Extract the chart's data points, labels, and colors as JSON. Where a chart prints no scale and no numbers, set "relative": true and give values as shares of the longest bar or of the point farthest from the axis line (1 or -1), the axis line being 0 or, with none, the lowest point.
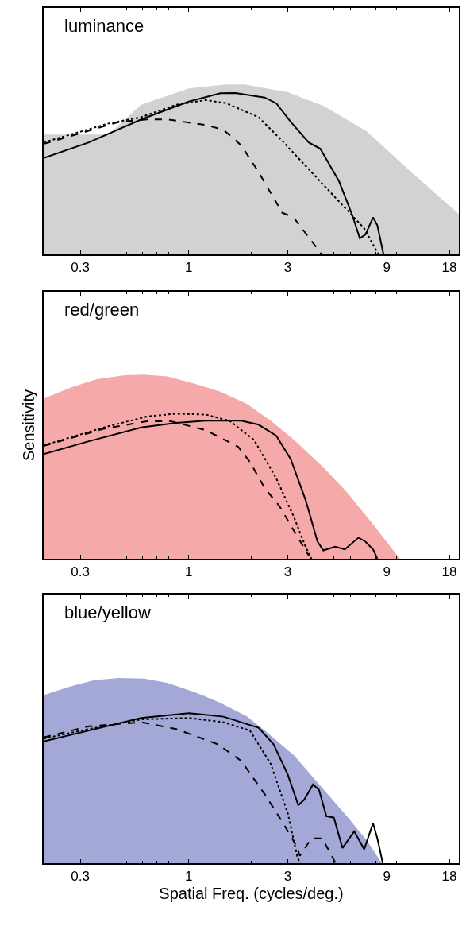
{
  "chart_data": [
    {
      "type": "line",
      "title": "luminance",
      "relative": true,
      "log": "x",
      "xlim": [
        0.2,
        20
      ],
      "xticks": [
        0.3,
        1,
        3,
        9,
        18
      ],
      "tick_labels": "x",
      "series": [
        {
          "type": "area",
          "color": "#d1d2d4",
          "x": [
            0.2,
            0.41,
            0.59,
            1,
            1.5,
            1.85,
            3,
            4.5,
            7.2,
            11.8,
            20
          ],
          "values": [
            0.705,
            0.705,
            0.88,
            0.976,
            1,
            1,
            0.954,
            0.871,
            0.724,
            0.484,
            0.236
          ]
        },
        {
          "color": "#000000",
          "line_style": "solid",
          "x": [
            0.2,
            0.33,
            0.59,
            1,
            1.42,
            1.68,
            2.32,
            2.64,
            3.1,
            3.78,
            4.3,
            5.3,
            6.15,
            6.67,
            7.1,
            7.72,
            8.1,
            8.67
          ],
          "values": [
            0.567,
            0.659,
            0.794,
            0.899,
            0.948,
            0.95,
            0.923,
            0.889,
            0.779,
            0.659,
            0.622,
            0.429,
            0.227,
            0.094,
            0.116,
            0.217,
            0.171,
            0
          ]
        },
        {
          "color": "#000000",
          "line_style": "dashed",
          "x": [
            0.2,
            0.46,
            0.63,
            0.79,
            1.21,
            1.47,
            1.79,
            2.17,
            2.82,
            3.2,
            3.9,
            4.37
          ],
          "values": [
            0.65,
            0.779,
            0.794,
            0.794,
            0.761,
            0.733,
            0.641,
            0.484,
            0.245,
            0.217,
            0.079,
            0
          ]
        },
        {
          "color": "#000000",
          "line_style": "dotted",
          "x": [
            0.2,
            0.41,
            0.59,
            0.87,
            1.21,
            1.52,
            2.17,
            2.82,
            3.9,
            5.4,
            7.0,
            8.2
          ],
          "values": [
            0.659,
            0.77,
            0.807,
            0.88,
            0.908,
            0.889,
            0.807,
            0.668,
            0.484,
            0.3,
            0.153,
            0
          ]
        }
      ]
    },
    {
      "type": "line",
      "title": "red/green",
      "ylabel": "Sensitivity",
      "relative": true,
      "log": "x",
      "xlim": [
        0.2,
        20
      ],
      "xticks": [
        0.3,
        1,
        3,
        9,
        18
      ],
      "tick_labels": "x",
      "series": [
        {
          "type": "area",
          "color": "#f5a9a9",
          "x": [
            0.2,
            0.27,
            0.36,
            0.49,
            0.61,
            0.79,
            1.06,
            1.42,
            1.91,
            2.48,
            3.21,
            4.45,
            5.77,
            7.97,
            10.4
          ],
          "values": [
            0.87,
            0.93,
            0.975,
            0.997,
            1,
            0.99,
            0.952,
            0.907,
            0.84,
            0.75,
            0.646,
            0.496,
            0.362,
            0.167,
            0
          ]
        },
        {
          "color": "#000000",
          "line_style": "solid",
          "x": [
            0.2,
            0.33,
            0.59,
            0.87,
            1.21,
            1.79,
            2.17,
            2.64,
            3.1,
            3.66,
            4.17,
            4.45,
            5.07,
            5.65,
            6.57,
            7.1,
            7.72,
            8.1
          ],
          "values": [
            0.568,
            0.638,
            0.713,
            0.738,
            0.75,
            0.75,
            0.728,
            0.668,
            0.541,
            0.317,
            0.093,
            0.045,
            0.066,
            0.051,
            0.115,
            0.093,
            0.051,
            0
          ]
        },
        {
          "color": "#000000",
          "line_style": "dashed",
          "x": [
            0.2,
            0.39,
            0.63,
            0.82,
            1.21,
            1.73,
            1.97,
            2.32,
            2.73,
            3.21,
            3.78
          ],
          "values": [
            0.613,
            0.706,
            0.747,
            0.747,
            0.698,
            0.608,
            0.526,
            0.384,
            0.287,
            0.152,
            0.018
          ]
        },
        {
          "color": "#000000",
          "line_style": "dotted",
          "x": [
            0.2,
            0.39,
            0.63,
            0.87,
            1.21,
            1.57,
            2.06,
            2.64,
            3.21,
            3.66,
            3.9
          ],
          "values": [
            0.616,
            0.713,
            0.773,
            0.788,
            0.783,
            0.75,
            0.646,
            0.436,
            0.227,
            0.063,
            0
          ]
        }
      ]
    },
    {
      "type": "line",
      "title": "blue/yellow",
      "xlabel": "Spatial Freq. (cycles/deg.)",
      "relative": true,
      "log": "x",
      "xlim": [
        0.2,
        20
      ],
      "xticks": [
        0.3,
        1,
        3,
        9,
        18
      ],
      "tick_labels": "x",
      "series": [
        {
          "type": "area",
          "color": "#a3a8d6",
          "x": [
            0.2,
            0.27,
            0.35,
            0.46,
            0.61,
            0.79,
            1.06,
            1.42,
            1.91,
            2.32,
            3.21,
            4.3,
            5.77,
            7.25,
            8.5
          ],
          "values": [
            0.907,
            0.955,
            0.988,
            1,
            0.996,
            0.973,
            0.925,
            0.866,
            0.791,
            0.716,
            0.582,
            0.418,
            0.254,
            0.119,
            0
          ]
        },
        {
          "color": "#000000",
          "line_style": "solid",
          "x": [
            0.2,
            0.33,
            0.59,
            1,
            1.47,
            2.17,
            2.56,
            3,
            3.37,
            3.6,
            3.97,
            4.24,
            4.6,
            5.0,
            5.5,
            6.27,
            7.0,
            7.72,
            8.1,
            8.6
          ],
          "values": [
            0.657,
            0.716,
            0.784,
            0.81,
            0.791,
            0.731,
            0.642,
            0.478,
            0.313,
            0.343,
            0.425,
            0.396,
            0.254,
            0.246,
            0.082,
            0.172,
            0.075,
            0.216,
            0.134,
            0
          ]
        },
        {
          "color": "#000000",
          "line_style": "dashed",
          "x": [
            0.2,
            0.33,
            0.59,
            0.87,
            1.38,
            1.79,
            2.32,
            2.82,
            3.26,
            3.43,
            3.9,
            4.4,
            5.1
          ],
          "values": [
            0.679,
            0.739,
            0.761,
            0.724,
            0.642,
            0.552,
            0.373,
            0.224,
            0.104,
            0.04,
            0.134,
            0.134,
            0
          ]
        },
        {
          "color": "#000000",
          "line_style": "dotted",
          "x": [
            0.2,
            0.33,
            0.59,
            1,
            1.47,
            1.97,
            2.48,
            3,
            3.33,
            3.43
          ],
          "values": [
            0.672,
            0.724,
            0.776,
            0.784,
            0.761,
            0.716,
            0.537,
            0.269,
            0.037,
            0
          ]
        }
      ]
    }
  ]
}
